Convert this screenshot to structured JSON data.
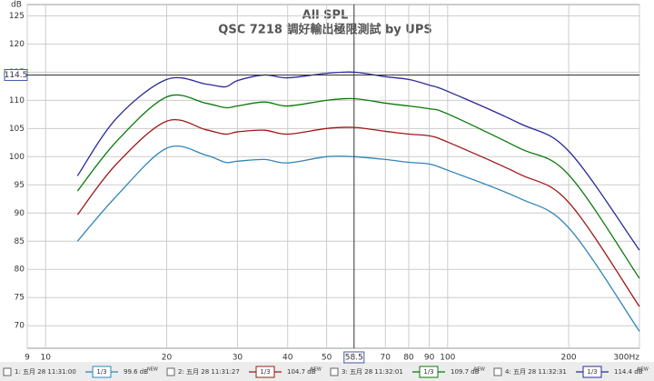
{
  "chart_data": {
    "type": "line",
    "title": "All SPL",
    "subtitle": "QSC 7218 調好輸出極限測試 by UPS",
    "y_label": "dB",
    "x_scale": "log",
    "grid": true,
    "xlim": [
      9,
      300
    ],
    "ylim": [
      66,
      127
    ],
    "xticks": [
      9,
      10,
      20,
      30,
      40,
      50,
      70,
      80,
      90,
      100,
      200,
      {
        "value": 300,
        "label": "300Hz"
      }
    ],
    "yticks": [
      70,
      75,
      80,
      85,
      90,
      95,
      100,
      105,
      110,
      115,
      120,
      125
    ],
    "cursor": {
      "x": 58.5,
      "y": 114.5
    },
    "x": [
      12,
      15,
      20,
      25,
      28,
      30,
      35,
      40,
      50,
      58.5,
      70,
      80,
      90,
      100,
      150,
      200,
      300
    ],
    "series": [
      {
        "name": "1: 五月 28 11:31:00",
        "color": "#2f86b8",
        "smoothing": "1/3",
        "level": 99.6,
        "level_label": "99.6 dB",
        "badge": "NEW",
        "values": [
          85,
          93,
          101.5,
          100.3,
          99,
          99.2,
          99.5,
          98.9,
          100,
          100,
          99.5,
          99,
          98.7,
          97.6,
          92.7,
          87.4,
          69
        ]
      },
      {
        "name": "2: 五月 28 11:31:27",
        "color": "#a01818",
        "smoothing": "1/3",
        "level": 104.7,
        "level_label": "104.7 dB",
        "badge": "NEW",
        "values": [
          89.7,
          98.7,
          106.3,
          104.8,
          104,
          104.4,
          104.7,
          104,
          105,
          105.2,
          104.5,
          104,
          103.7,
          102.6,
          97,
          91.9,
          73.4
        ]
      },
      {
        "name": "3: 五月 28 11:32:01",
        "color": "#0a7a0a",
        "smoothing": "1/3",
        "level": 109.7,
        "level_label": "109.7 dB",
        "badge": "NEW",
        "values": [
          93.9,
          102.7,
          110.6,
          109.5,
          108.7,
          109,
          109.7,
          109,
          110,
          110.3,
          109.5,
          109,
          108.5,
          107.6,
          101.6,
          96.8,
          78.4
        ]
      },
      {
        "name": "4: 五月 28 11:32:31",
        "color": "#2a2a9a",
        "smoothing": "1/3",
        "level": 114.4,
        "level_label": "114.4 dB",
        "badge": "NEW",
        "values": [
          96.6,
          106.8,
          113.7,
          112.9,
          112.4,
          113.5,
          114.5,
          114,
          114.8,
          115,
          114.2,
          113.7,
          112.7,
          111.6,
          106,
          101,
          83.4
        ]
      }
    ]
  }
}
